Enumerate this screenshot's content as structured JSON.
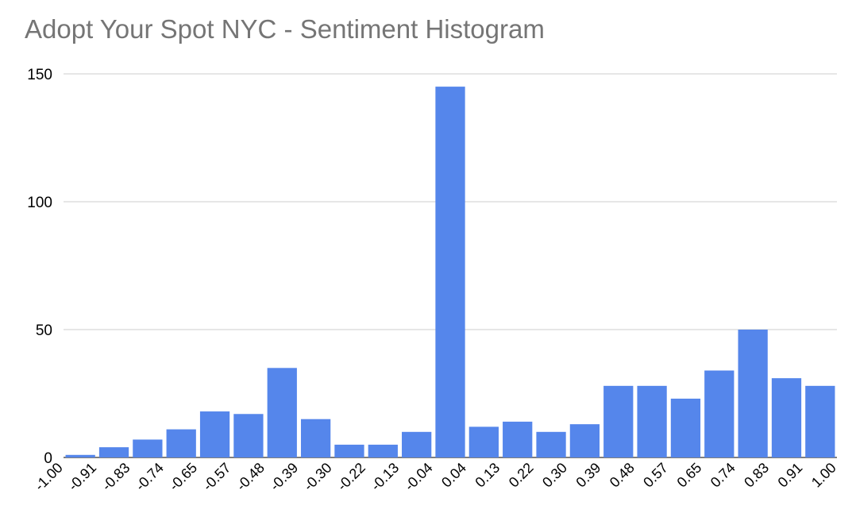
{
  "chart_data": {
    "type": "bar",
    "title": "Adopt Your Spot NYC - Sentiment Histogram",
    "xlabel": "",
    "ylabel": "",
    "x_tick_labels": [
      "-1.00",
      "-0.91",
      "-0.83",
      "-0.74",
      "-0.65",
      "-0.57",
      "-0.48",
      "-0.39",
      "-0.30",
      "-0.22",
      "-0.13",
      "-0.04",
      "0.04",
      "0.13",
      "0.22",
      "0.30",
      "0.39",
      "0.48",
      "0.57",
      "0.65",
      "0.74",
      "0.83",
      "0.91",
      "1.00"
    ],
    "values": [
      1,
      4,
      7,
      11,
      18,
      17,
      35,
      15,
      5,
      5,
      10,
      145,
      12,
      14,
      10,
      13,
      28,
      28,
      23,
      34,
      50,
      31,
      28
    ],
    "y_ticks": [
      0,
      50,
      100,
      150
    ],
    "ylim": [
      0,
      150
    ],
    "grid": true,
    "legend": "none",
    "bar_color": "#5586EB",
    "gridline_color": "#CCCCCC"
  }
}
